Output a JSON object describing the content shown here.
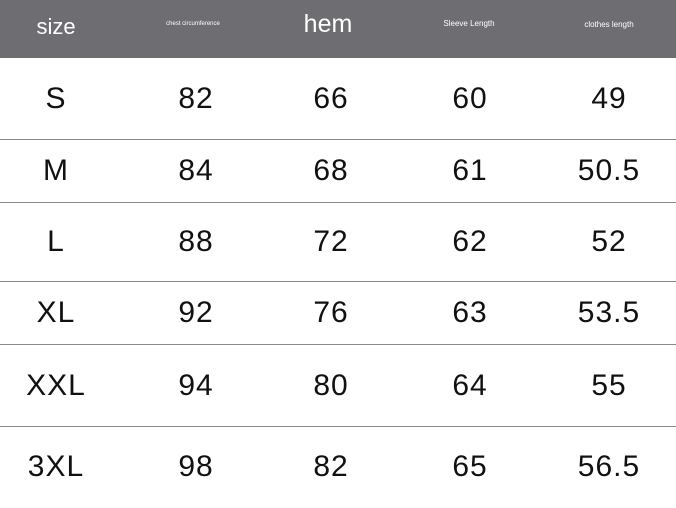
{
  "headers": [
    "size",
    "chest circumference",
    "hem",
    "Sleeve Length",
    "clothes length"
  ],
  "rows": [
    [
      "S",
      "82",
      "66",
      "60",
      "49"
    ],
    [
      "M",
      "84",
      "68",
      "61",
      "50.5"
    ],
    [
      "L",
      "88",
      "72",
      "62",
      "52"
    ],
    [
      "XL",
      "92",
      "76",
      "63",
      "53.5"
    ],
    [
      "XXL",
      "94",
      "80",
      "64",
      "55"
    ],
    [
      "3XL",
      "98",
      "82",
      "65",
      "56.5"
    ]
  ]
}
